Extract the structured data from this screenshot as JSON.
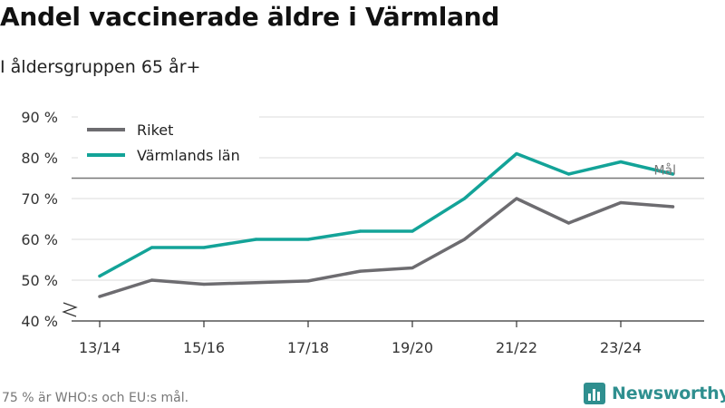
{
  "title": "Andel vaccinerade äldre i Värmland",
  "subtitle": "I åldersgruppen 65 år+",
  "footnote": "75 % är WHO:s och EU:s mål.",
  "brand": "Newsworthy",
  "colors": {
    "riket": "#6d6c70",
    "varmland": "#13a398",
    "target_line": "#777777",
    "grid": "#e2e2e2",
    "brand": "#2f8f8f"
  },
  "chart_data": {
    "type": "line",
    "x": [
      "13/14",
      "14/15",
      "15/16",
      "16/17",
      "17/18",
      "18/19",
      "19/20",
      "20/21",
      "21/22",
      "22/23",
      "23/24",
      "24/25"
    ],
    "xticks": [
      "13/14",
      "15/16",
      "17/18",
      "19/20",
      "21/22",
      "23/24"
    ],
    "series": [
      {
        "name": "Riket",
        "values": [
          46,
          50,
          49,
          49.4,
          49.8,
          52.2,
          53,
          60,
          70,
          64,
          69,
          68
        ]
      },
      {
        "name": "Värmlands län",
        "values": [
          51,
          58,
          58,
          60,
          60,
          62,
          62,
          70,
          81,
          76,
          79,
          76
        ]
      }
    ],
    "yticks": [
      40,
      50,
      60,
      70,
      80,
      90
    ],
    "ytick_labels": [
      "40 %",
      "50 %",
      "60 %",
      "70 %",
      "80 %",
      "90 %"
    ],
    "ylim": [
      40,
      90
    ],
    "y_axis_break": true,
    "reference_line": {
      "value": 75,
      "label": "Mål"
    },
    "grid": true,
    "legend_position": "top-left"
  }
}
